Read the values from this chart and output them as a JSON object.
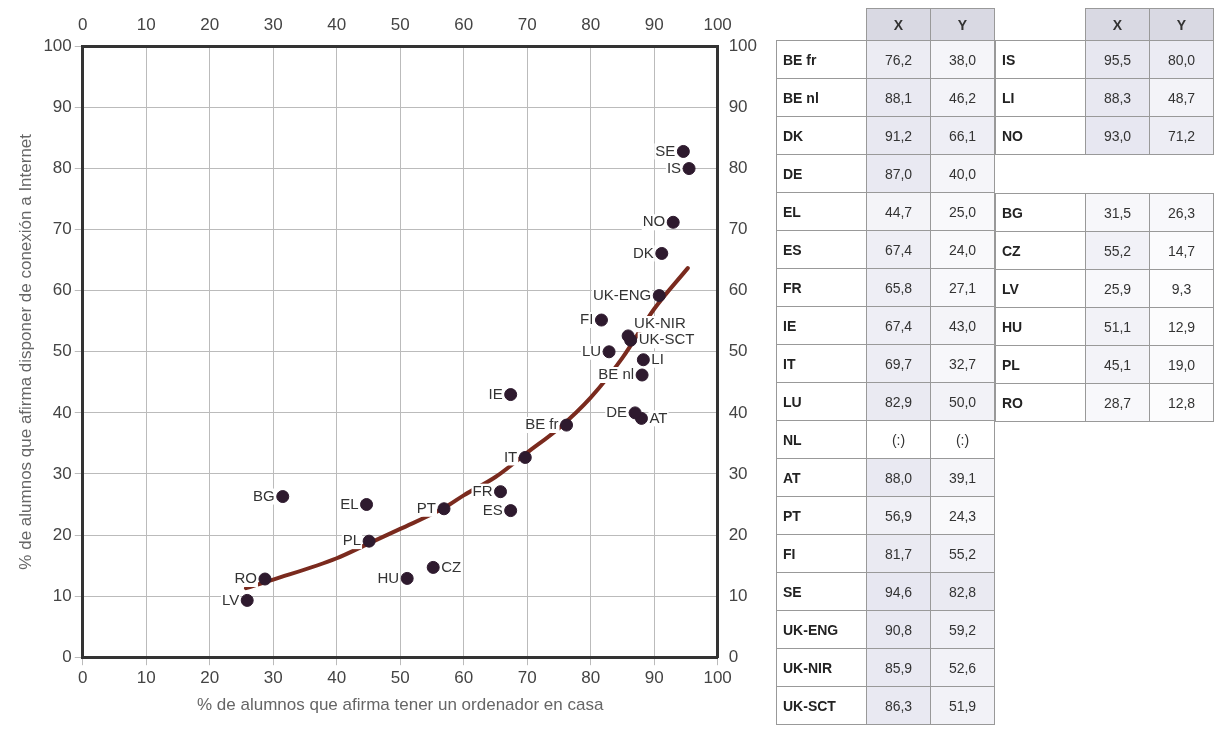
{
  "chart_data": [
    {
      "type": "scatter",
      "xlabel": "% de alumnos que afirma tener un ordenador en casa",
      "ylabel": "% de alumnos que afirma disponer de conexión a Internet",
      "xlim": [
        0,
        100
      ],
      "xticks": [
        0,
        10,
        20,
        30,
        40,
        50,
        60,
        70,
        80,
        90,
        100
      ],
      "x2lim": [
        0,
        100
      ],
      "x2ticks": [
        0,
        10,
        20,
        30,
        40,
        50,
        60,
        70,
        80,
        90,
        100
      ],
      "ylim": [
        0,
        100
      ],
      "yticks": [
        0,
        10,
        20,
        30,
        40,
        50,
        60,
        70,
        80,
        90,
        100
      ],
      "y2lim": [
        0,
        100
      ],
      "y2ticks": [
        0,
        10,
        20,
        30,
        40,
        50,
        60,
        70,
        80,
        90,
        100
      ],
      "grid": true,
      "marker": "circle",
      "series": [
        {
          "name": "BE fr",
          "color": "#2e1a2e",
          "x": [
            76.2
          ],
          "values": [
            38.0
          ]
        },
        {
          "name": "BE nl",
          "color": "#2e1a2e",
          "x": [
            88.1
          ],
          "values": [
            46.2
          ]
        },
        {
          "name": "DK",
          "color": "#2e1a2e",
          "x": [
            91.2
          ],
          "values": [
            66.1
          ]
        },
        {
          "name": "DE",
          "color": "#2e1a2e",
          "x": [
            87.0
          ],
          "values": [
            40.0
          ]
        },
        {
          "name": "EL",
          "color": "#2e1a2e",
          "x": [
            44.7
          ],
          "values": [
            25.0
          ]
        },
        {
          "name": "ES",
          "color": "#2e1a2e",
          "x": [
            67.4
          ],
          "values": [
            24.0
          ]
        },
        {
          "name": "FR",
          "color": "#2e1a2e",
          "x": [
            65.8
          ],
          "values": [
            27.1
          ]
        },
        {
          "name": "IE",
          "color": "#2e1a2e",
          "x": [
            67.4
          ],
          "values": [
            43.0
          ]
        },
        {
          "name": "IT",
          "color": "#2e1a2e",
          "x": [
            69.7
          ],
          "values": [
            32.7
          ]
        },
        {
          "name": "LU",
          "color": "#2e1a2e",
          "x": [
            82.9
          ],
          "values": [
            50.0
          ]
        },
        {
          "name": "AT",
          "color": "#2e1a2e",
          "x": [
            88.0
          ],
          "values": [
            39.1
          ]
        },
        {
          "name": "PT",
          "color": "#2e1a2e",
          "x": [
            56.9
          ],
          "values": [
            24.3
          ]
        },
        {
          "name": "FI",
          "color": "#2e1a2e",
          "x": [
            81.7
          ],
          "values": [
            55.2
          ]
        },
        {
          "name": "SE",
          "color": "#2e1a2e",
          "x": [
            94.6
          ],
          "values": [
            82.8
          ]
        },
        {
          "name": "UK-ENG",
          "color": "#2e1a2e",
          "x": [
            90.8
          ],
          "values": [
            59.2
          ]
        },
        {
          "name": "UK-NIR",
          "color": "#2e1a2e",
          "x": [
            85.9
          ],
          "values": [
            52.6
          ]
        },
        {
          "name": "UK-SCT",
          "color": "#2e1a2e",
          "x": [
            86.3
          ],
          "values": [
            51.9
          ]
        },
        {
          "name": "IS",
          "color": "#2e1a2e",
          "x": [
            95.5
          ],
          "values": [
            80.0
          ]
        },
        {
          "name": "LI",
          "color": "#2e1a2e",
          "x": [
            88.3
          ],
          "values": [
            48.7
          ]
        },
        {
          "name": "NO",
          "color": "#2e1a2e",
          "x": [
            93.0
          ],
          "values": [
            71.2
          ]
        },
        {
          "name": "BG",
          "color": "#2e1a2e",
          "x": [
            31.5
          ],
          "values": [
            26.3
          ]
        },
        {
          "name": "CZ",
          "color": "#2e1a2e",
          "x": [
            55.2
          ],
          "values": [
            14.7
          ]
        },
        {
          "name": "LV",
          "color": "#2e1a2e",
          "x": [
            25.9
          ],
          "values": [
            9.3
          ]
        },
        {
          "name": "HU",
          "color": "#2e1a2e",
          "x": [
            51.1
          ],
          "values": [
            12.9
          ]
        },
        {
          "name": "PL",
          "color": "#2e1a2e",
          "x": [
            45.1
          ],
          "values": [
            19.0
          ]
        },
        {
          "name": "RO",
          "color": "#2e1a2e",
          "x": [
            28.7
          ],
          "values": [
            12.8
          ]
        },
        {
          "type": "line",
          "marker": "none",
          "color": "#7a2a1e",
          "x": [
            25.7,
            30,
            40,
            45,
            50,
            57,
            60,
            65,
            70,
            75,
            80,
            85,
            90,
            95.3
          ],
          "values": [
            11.3,
            12.7,
            16.2,
            18.6,
            21,
            24.5,
            26.5,
            29.5,
            33.5,
            37.5,
            42.5,
            49,
            57,
            63.7
          ]
        }
      ]
    },
    {
      "type": "heatmap",
      "categories": [
        "X",
        "Y"
      ],
      "y_categories": [
        "BE fr",
        "BE nl",
        "DK",
        "DE",
        "EL",
        "ES",
        "FR",
        "IE",
        "IT",
        "LU",
        "NL",
        "AT",
        "PT",
        "FI",
        "SE",
        "UK-ENG",
        "UK-NIR",
        "UK-SCT"
      ],
      "cells": [
        [
          76.2,
          38.0
        ],
        [
          88.1,
          46.2
        ],
        [
          91.2,
          66.1
        ],
        [
          87.0,
          40.0
        ],
        [
          44.7,
          25.0
        ],
        [
          67.4,
          24.0
        ],
        [
          65.8,
          27.1
        ],
        [
          67.4,
          43.0
        ],
        [
          69.7,
          32.7
        ],
        [
          82.9,
          50.0
        ],
        [
          null,
          null
        ],
        [
          88.0,
          39.1
        ],
        [
          56.9,
          24.3
        ],
        [
          81.7,
          55.2
        ],
        [
          94.6,
          82.8
        ],
        [
          90.8,
          59.2
        ],
        [
          85.9,
          52.6
        ],
        [
          86.3,
          51.9
        ]
      ],
      "cell_labels": [
        [
          "76,2",
          "38,0"
        ],
        [
          "88,1",
          "46,2"
        ],
        [
          "91,2",
          "66,1"
        ],
        [
          "87,0",
          "40,0"
        ],
        [
          "44,7",
          "25,0"
        ],
        [
          "67,4",
          "24,0"
        ],
        [
          "65,8",
          "27,1"
        ],
        [
          "67,4",
          "43,0"
        ],
        [
          "69,7",
          "32,7"
        ],
        [
          "82,9",
          "50,0"
        ],
        [
          "(:)",
          "(:)"
        ],
        [
          "88,0",
          "39,1"
        ],
        [
          "56,9",
          "24,3"
        ],
        [
          "81,7",
          "55,2"
        ],
        [
          "94,6",
          "82,8"
        ],
        [
          "90,8",
          "59,2"
        ],
        [
          "85,9",
          "52,6"
        ],
        [
          "86,3",
          "51,9"
        ]
      ]
    },
    {
      "type": "heatmap",
      "categories": [
        "X",
        "Y"
      ],
      "y_categories": [
        "IS",
        "LI",
        "NO"
      ],
      "cells": [
        [
          95.5,
          80.0
        ],
        [
          88.3,
          48.7
        ],
        [
          93.0,
          71.2
        ]
      ],
      "cell_labels": [
        [
          "95,5",
          "80,0"
        ],
        [
          "88,3",
          "48,7"
        ],
        [
          "93,0",
          "71,2"
        ]
      ]
    },
    {
      "type": "heatmap",
      "categories": [
        null,
        null
      ],
      "y_categories": [
        "BG",
        "CZ",
        "LV",
        "HU",
        "PL",
        "RO"
      ],
      "cells": [
        [
          31.5,
          26.3
        ],
        [
          55.2,
          14.7
        ],
        [
          25.9,
          9.3
        ],
        [
          51.1,
          12.9
        ],
        [
          45.1,
          19.0
        ],
        [
          28.7,
          12.8
        ]
      ],
      "cell_labels": [
        [
          "31,5",
          "26,3"
        ],
        [
          "55,2",
          "14,7"
        ],
        [
          "25,9",
          "9,3"
        ],
        [
          "51,1",
          "12,9"
        ],
        [
          "45,1",
          "19,0"
        ],
        [
          "28,7",
          "12,8"
        ]
      ]
    }
  ]
}
